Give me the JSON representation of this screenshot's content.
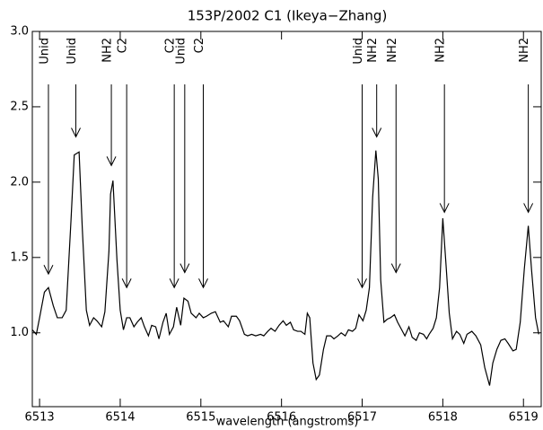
{
  "chart_data": {
    "type": "line",
    "title": "153P/2002 C1 (Ikeya−Zhang)",
    "x_label": "wavelength (angstroms)",
    "xlim": [
      6512.91,
      6519.22
    ],
    "ylim": [
      0.51,
      3.0
    ],
    "xticks": [
      6513,
      6514,
      6515,
      6516,
      6517,
      6518,
      6519
    ],
    "yticks": [
      {
        "value": 1,
        "label": "1.0"
      },
      {
        "value": 1.5,
        "label": "1.5"
      },
      {
        "value": 2,
        "label": "2.0"
      },
      {
        "value": 2.5,
        "label": "2.5"
      },
      {
        "value": 3,
        "label": "3.0"
      }
    ],
    "series": [
      {
        "color": "#000000",
        "x": [
          6512.91,
          6512.96,
          6513.0,
          6513.06,
          6513.11,
          6513.17,
          6513.22,
          6513.28,
          6513.33,
          6513.39,
          6513.43,
          6513.49,
          6513.53,
          6513.58,
          6513.62,
          6513.67,
          6513.71,
          6513.77,
          6513.81,
          6513.86,
          6513.88,
          6513.91,
          6513.96,
          6514.0,
          6514.04,
          6514.08,
          6514.12,
          6514.17,
          6514.21,
          6514.26,
          6514.3,
          6514.35,
          6514.39,
          6514.44,
          6514.48,
          6514.53,
          6514.57,
          6514.61,
          6514.66,
          6514.7,
          6514.75,
          6514.79,
          6514.84,
          6514.88,
          6514.94,
          6514.98,
          6515.03,
          6515.07,
          6515.13,
          6515.18,
          6515.24,
          6515.28,
          6515.34,
          6515.38,
          6515.44,
          6515.48,
          6515.54,
          6515.58,
          6515.63,
          6515.68,
          6515.74,
          6515.78,
          6515.83,
          6515.87,
          6515.92,
          6515.97,
          6516.02,
          6516.06,
          6516.11,
          6516.15,
          6516.2,
          6516.24,
          6516.29,
          6516.32,
          6516.35,
          6516.39,
          6516.43,
          6516.47,
          6516.52,
          6516.56,
          6516.61,
          6516.65,
          6516.7,
          6516.74,
          6516.79,
          6516.83,
          6516.88,
          6516.92,
          6516.96,
          6517.01,
          6517.05,
          6517.09,
          6517.13,
          6517.17,
          6517.2,
          6517.23,
          6517.27,
          6517.31,
          6517.35,
          6517.4,
          6517.44,
          6517.49,
          6517.53,
          6517.58,
          6517.62,
          6517.67,
          6517.71,
          6517.76,
          6517.8,
          6517.83,
          6517.88,
          6517.92,
          6517.96,
          6518.0,
          6518.04,
          6518.08,
          6518.12,
          6518.17,
          6518.21,
          6518.26,
          6518.3,
          6518.36,
          6518.41,
          6518.47,
          6518.52,
          6518.58,
          6518.62,
          6518.67,
          6518.72,
          6518.77,
          6518.81,
          6518.87,
          6518.91,
          6518.96,
          6519.01,
          6519.06,
          6519.1,
          6519.15,
          6519.19
        ],
        "values": [
          1.02,
          0.99,
          1.1,
          1.27,
          1.3,
          1.18,
          1.1,
          1.1,
          1.15,
          1.75,
          2.18,
          2.2,
          1.69,
          1.15,
          1.05,
          1.1,
          1.08,
          1.04,
          1.14,
          1.54,
          1.92,
          2.01,
          1.48,
          1.15,
          1.02,
          1.1,
          1.1,
          1.04,
          1.07,
          1.1,
          1.04,
          0.98,
          1.05,
          1.04,
          0.96,
          1.07,
          1.13,
          0.99,
          1.04,
          1.17,
          1.05,
          1.23,
          1.21,
          1.13,
          1.1,
          1.13,
          1.1,
          1.11,
          1.13,
          1.14,
          1.07,
          1.08,
          1.04,
          1.11,
          1.11,
          1.08,
          0.99,
          0.98,
          0.99,
          0.98,
          0.99,
          0.98,
          1.01,
          1.03,
          1.01,
          1.05,
          1.08,
          1.05,
          1.07,
          1.02,
          1.01,
          1.01,
          0.99,
          1.13,
          1.1,
          0.8,
          0.69,
          0.72,
          0.89,
          0.98,
          0.98,
          0.96,
          0.98,
          1.0,
          0.98,
          1.02,
          1.01,
          1.03,
          1.12,
          1.08,
          1.15,
          1.3,
          1.9,
          2.21,
          2.02,
          1.35,
          1.07,
          1.09,
          1.1,
          1.12,
          1.07,
          1.02,
          0.98,
          1.04,
          0.97,
          0.95,
          1.0,
          0.99,
          0.96,
          0.99,
          1.03,
          1.1,
          1.3,
          1.76,
          1.45,
          1.13,
          0.96,
          1.01,
          0.99,
          0.93,
          0.99,
          1.01,
          0.98,
          0.92,
          0.77,
          0.65,
          0.8,
          0.89,
          0.95,
          0.96,
          0.93,
          0.88,
          0.89,
          1.07,
          1.42,
          1.71,
          1.42,
          1.1,
          0.99
        ]
      }
    ],
    "annotations": [
      {
        "text": "Unid",
        "x": 6513.11,
        "y": 1.39
      },
      {
        "text": "Unid",
        "x": 6513.45,
        "y": 2.3
      },
      {
        "text": "NH2",
        "x": 6513.89,
        "y": 2.11
      },
      {
        "text": "C2",
        "x": 6514.08,
        "y": 1.3
      },
      {
        "text": "C2",
        "x": 6514.67,
        "y": 1.3
      },
      {
        "text": "Unid",
        "x": 6514.8,
        "y": 1.4
      },
      {
        "text": "C2",
        "x": 6515.03,
        "y": 1.3
      },
      {
        "text": "Unid",
        "x": 6517.0,
        "y": 1.3
      },
      {
        "text": "NH2",
        "x": 6517.18,
        "y": 2.3
      },
      {
        "text": "NH2",
        "x": 6517.42,
        "y": 1.4
      },
      {
        "text": "NH2",
        "x": 6518.02,
        "y": 1.8
      },
      {
        "text": "NH2",
        "x": 6519.06,
        "y": 1.8
      }
    ]
  }
}
